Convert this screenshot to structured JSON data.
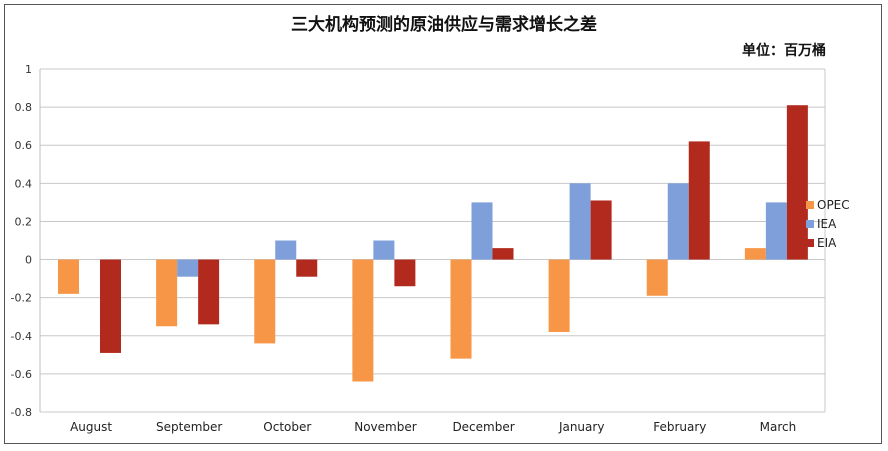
{
  "title": "三大机构预测的原油供应与需求增长之差",
  "unit": "单位：百万桶",
  "chart_data": {
    "type": "bar",
    "categories": [
      "August",
      "September",
      "October",
      "November",
      "December",
      "January",
      "February",
      "March"
    ],
    "series": [
      {
        "name": "OPEC",
        "color": "#F79646",
        "values": [
          -0.18,
          -0.35,
          -0.44,
          -0.64,
          -0.52,
          -0.38,
          -0.19,
          0.06
        ]
      },
      {
        "name": "IEA",
        "color": "#7E9FD9",
        "values": [
          0.0,
          -0.09,
          0.1,
          0.1,
          0.3,
          0.4,
          0.4,
          0.3
        ]
      },
      {
        "name": "EIA",
        "color": "#B22A1E",
        "values": [
          -0.49,
          -0.34,
          -0.09,
          -0.14,
          0.06,
          0.31,
          0.62,
          0.81
        ]
      }
    ],
    "yticks": [
      "1",
      "0.8",
      "0.6",
      "0.4",
      "0.2",
      "0",
      "-0.2",
      "-0.4",
      "-0.6",
      "-0.8"
    ],
    "ylim": [
      -0.8,
      1
    ],
    "grid": true,
    "legend_position": "right"
  }
}
